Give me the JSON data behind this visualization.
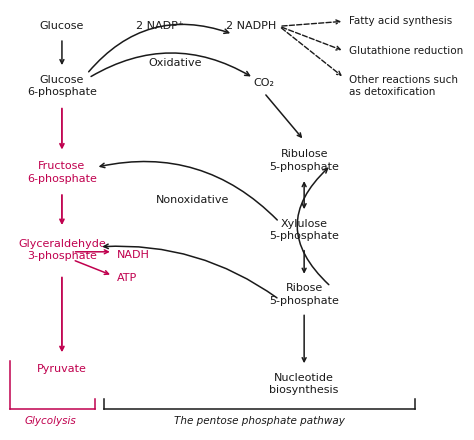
{
  "bg_color": "#ffffff",
  "black_color": "#1a1a1a",
  "pink_color": "#c0004e",
  "labels": {
    "glucose": "Glucose",
    "glucose6p": "Glucose\n6-phosphate",
    "fructose6p": "Fructose\n6-phosphate",
    "glyceraldehyde3p": "Glyceraldehyde\n3-phosphate",
    "pyruvate": "Pyruvate",
    "nadp": "2 NADP⁺",
    "nadph": "2 NADPH",
    "co2": "CO₂",
    "ribulose5p": "Ribulose\n5-phosphate",
    "xylulose5p": "Xylulose\n5-phosphate",
    "ribose5p": "Ribose\n5-phosphate",
    "nucleotide": "Nucleotide\nbiosynthesis",
    "nadh": "NADH",
    "atp": "ATP",
    "fatty": "Fatty acid synthesis",
    "glutathione": "Glutathione reduction",
    "other": "Other reactions such\nas detoxification",
    "oxidative": "Oxidative",
    "nonoxidative": "Nonoxidative",
    "glycolysis": "Glycolysis",
    "pentose": "The pentose phosphate pathway"
  },
  "fontsize": 8.0,
  "small_fontsize": 7.5
}
